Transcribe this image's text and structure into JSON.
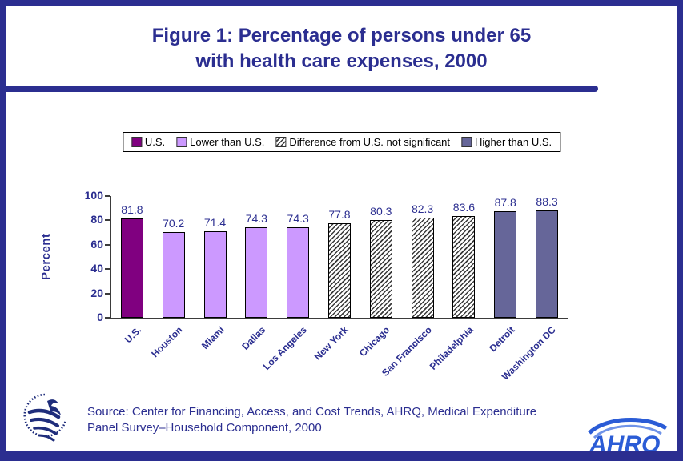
{
  "page": {
    "title_line1": "Figure 1: Percentage of persons under 65",
    "title_line2": "with health care expenses, 2000",
    "source_line1": "Source: Center for Financing, Access, and Cost Trends, AHRQ, Medical Expenditure",
    "source_line2": "Panel Survey–Household Component, 2000",
    "ahrq_logo_text": "AHRQ"
  },
  "legend": {
    "items": [
      {
        "label": "U.S.",
        "style": "us"
      },
      {
        "label": "Lower than U.S.",
        "style": "lower"
      },
      {
        "label": "Difference from U.S. not significant",
        "style": "hatch"
      },
      {
        "label": "Higher than U.S.",
        "style": "higher"
      }
    ]
  },
  "colors": {
    "navy": "#2b2e90",
    "us": "#800080",
    "lower": "#cc99ff",
    "higher": "#666699",
    "ahrq_blue": "#2b5cd6"
  },
  "chart_data": {
    "type": "bar",
    "title": "Figure 1: Percentage of persons under 65 with health care expenses, 2000",
    "ylabel": "Percent",
    "xlabel": "",
    "ylim": [
      0,
      100
    ],
    "yticks": [
      0,
      20,
      40,
      60,
      80,
      100
    ],
    "grid": false,
    "legend_position": "top",
    "categories": [
      "U.S.",
      "Houston",
      "Miami",
      "Dallas",
      "Los Angeles",
      "New York",
      "Chicago",
      "San Francisco",
      "Philadelphia",
      "Detroit",
      "Washington DC"
    ],
    "values": [
      81.8,
      70.2,
      71.4,
      74.3,
      74.3,
      77.8,
      80.3,
      82.3,
      83.6,
      87.8,
      88.3
    ],
    "bar_styles": [
      "us",
      "lower",
      "lower",
      "lower",
      "lower",
      "hatch",
      "hatch",
      "hatch",
      "hatch",
      "higher",
      "higher"
    ]
  }
}
